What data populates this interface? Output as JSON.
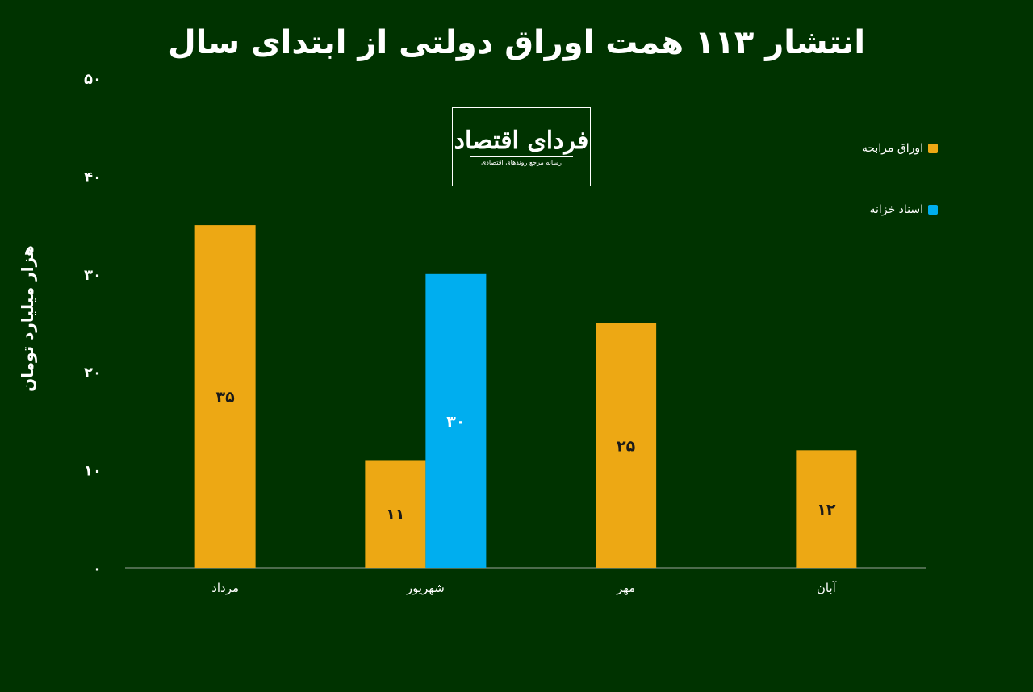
{
  "chart_data": {
    "type": "bar",
    "title": "انتشار ۱۱۳ همت اوراق دولتی از ابتدای سال",
    "ylabel": "هزار میلیارد تومان",
    "xlabel": "",
    "ylim": [
      0,
      50
    ],
    "yticks": [
      {
        "value": 0,
        "label": "۰"
      },
      {
        "value": 10,
        "label": "۱۰"
      },
      {
        "value": 20,
        "label": "۲۰"
      },
      {
        "value": 30,
        "label": "۳۰"
      },
      {
        "value": 40,
        "label": "۴۰"
      },
      {
        "value": 50,
        "label": "۵۰"
      }
    ],
    "categories": [
      "مرداد",
      "شهریور",
      "مهر",
      "آبان"
    ],
    "grid": false,
    "legend_position": "right",
    "series": [
      {
        "name": "اوراق مرابحه",
        "color": "#EDA814",
        "label_color": "#1a1a1a",
        "values": [
          35,
          11,
          25,
          12
        ],
        "labels": [
          "۳۵",
          "۱۱",
          "۲۵",
          "۱۲"
        ]
      },
      {
        "name": "اسناد خزانه",
        "color": "#00AEEF",
        "label_color": "#ffffff",
        "values": [
          null,
          30,
          null,
          null
        ],
        "labels": [
          null,
          "۳۰",
          null,
          null
        ]
      }
    ]
  },
  "logo": {
    "main": "فردای اقتصاد",
    "sub": "رسانه مرجع روندهای اقتصادی"
  },
  "colors": {
    "background": "#003300",
    "text": "#ffffff"
  }
}
